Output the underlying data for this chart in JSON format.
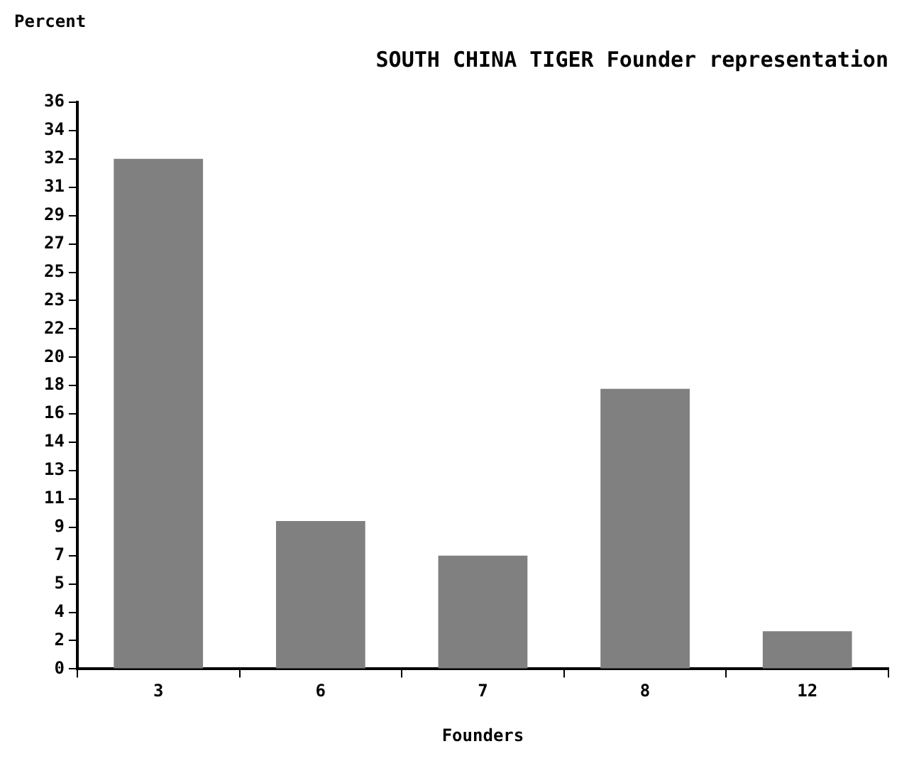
{
  "chart_data": {
    "type": "bar",
    "title": "SOUTH CHINA TIGER Founder representation",
    "xlabel": "Founders",
    "ylabel": "Percent",
    "categories": [
      "3",
      "6",
      "7",
      "8",
      "12"
    ],
    "values": [
      32.4,
      9.4,
      7.2,
      17.8,
      2.4
    ],
    "color": "#808080",
    "ylim": [
      0,
      36
    ],
    "yticks": [
      0,
      {
        "value": 1.8,
        "label": "2"
      },
      {
        "value": 3.6,
        "label": "4"
      },
      {
        "value": 5.4,
        "label": "5"
      },
      {
        "value": 7.2,
        "label": "7"
      },
      {
        "value": 9,
        "label": "9"
      },
      {
        "value": 10.8,
        "label": "11"
      },
      {
        "value": 12.6,
        "label": "13"
      },
      {
        "value": 14.4,
        "label": "14"
      },
      {
        "value": 16.2,
        "label": "16"
      },
      {
        "value": 18,
        "label": "18"
      },
      {
        "value": 19.8,
        "label": "20"
      },
      {
        "value": 21.6,
        "label": "22"
      },
      {
        "value": 23.4,
        "label": "23"
      },
      {
        "value": 25.2,
        "label": "25"
      },
      {
        "value": 27,
        "label": "27"
      },
      {
        "value": 28.8,
        "label": "29"
      },
      {
        "value": 30.6,
        "label": "31"
      },
      {
        "value": 32.4,
        "label": "32"
      },
      {
        "value": 34.2,
        "label": "34"
      },
      {
        "value": 36,
        "label": "36"
      }
    ],
    "grid": false,
    "legend": false
  }
}
